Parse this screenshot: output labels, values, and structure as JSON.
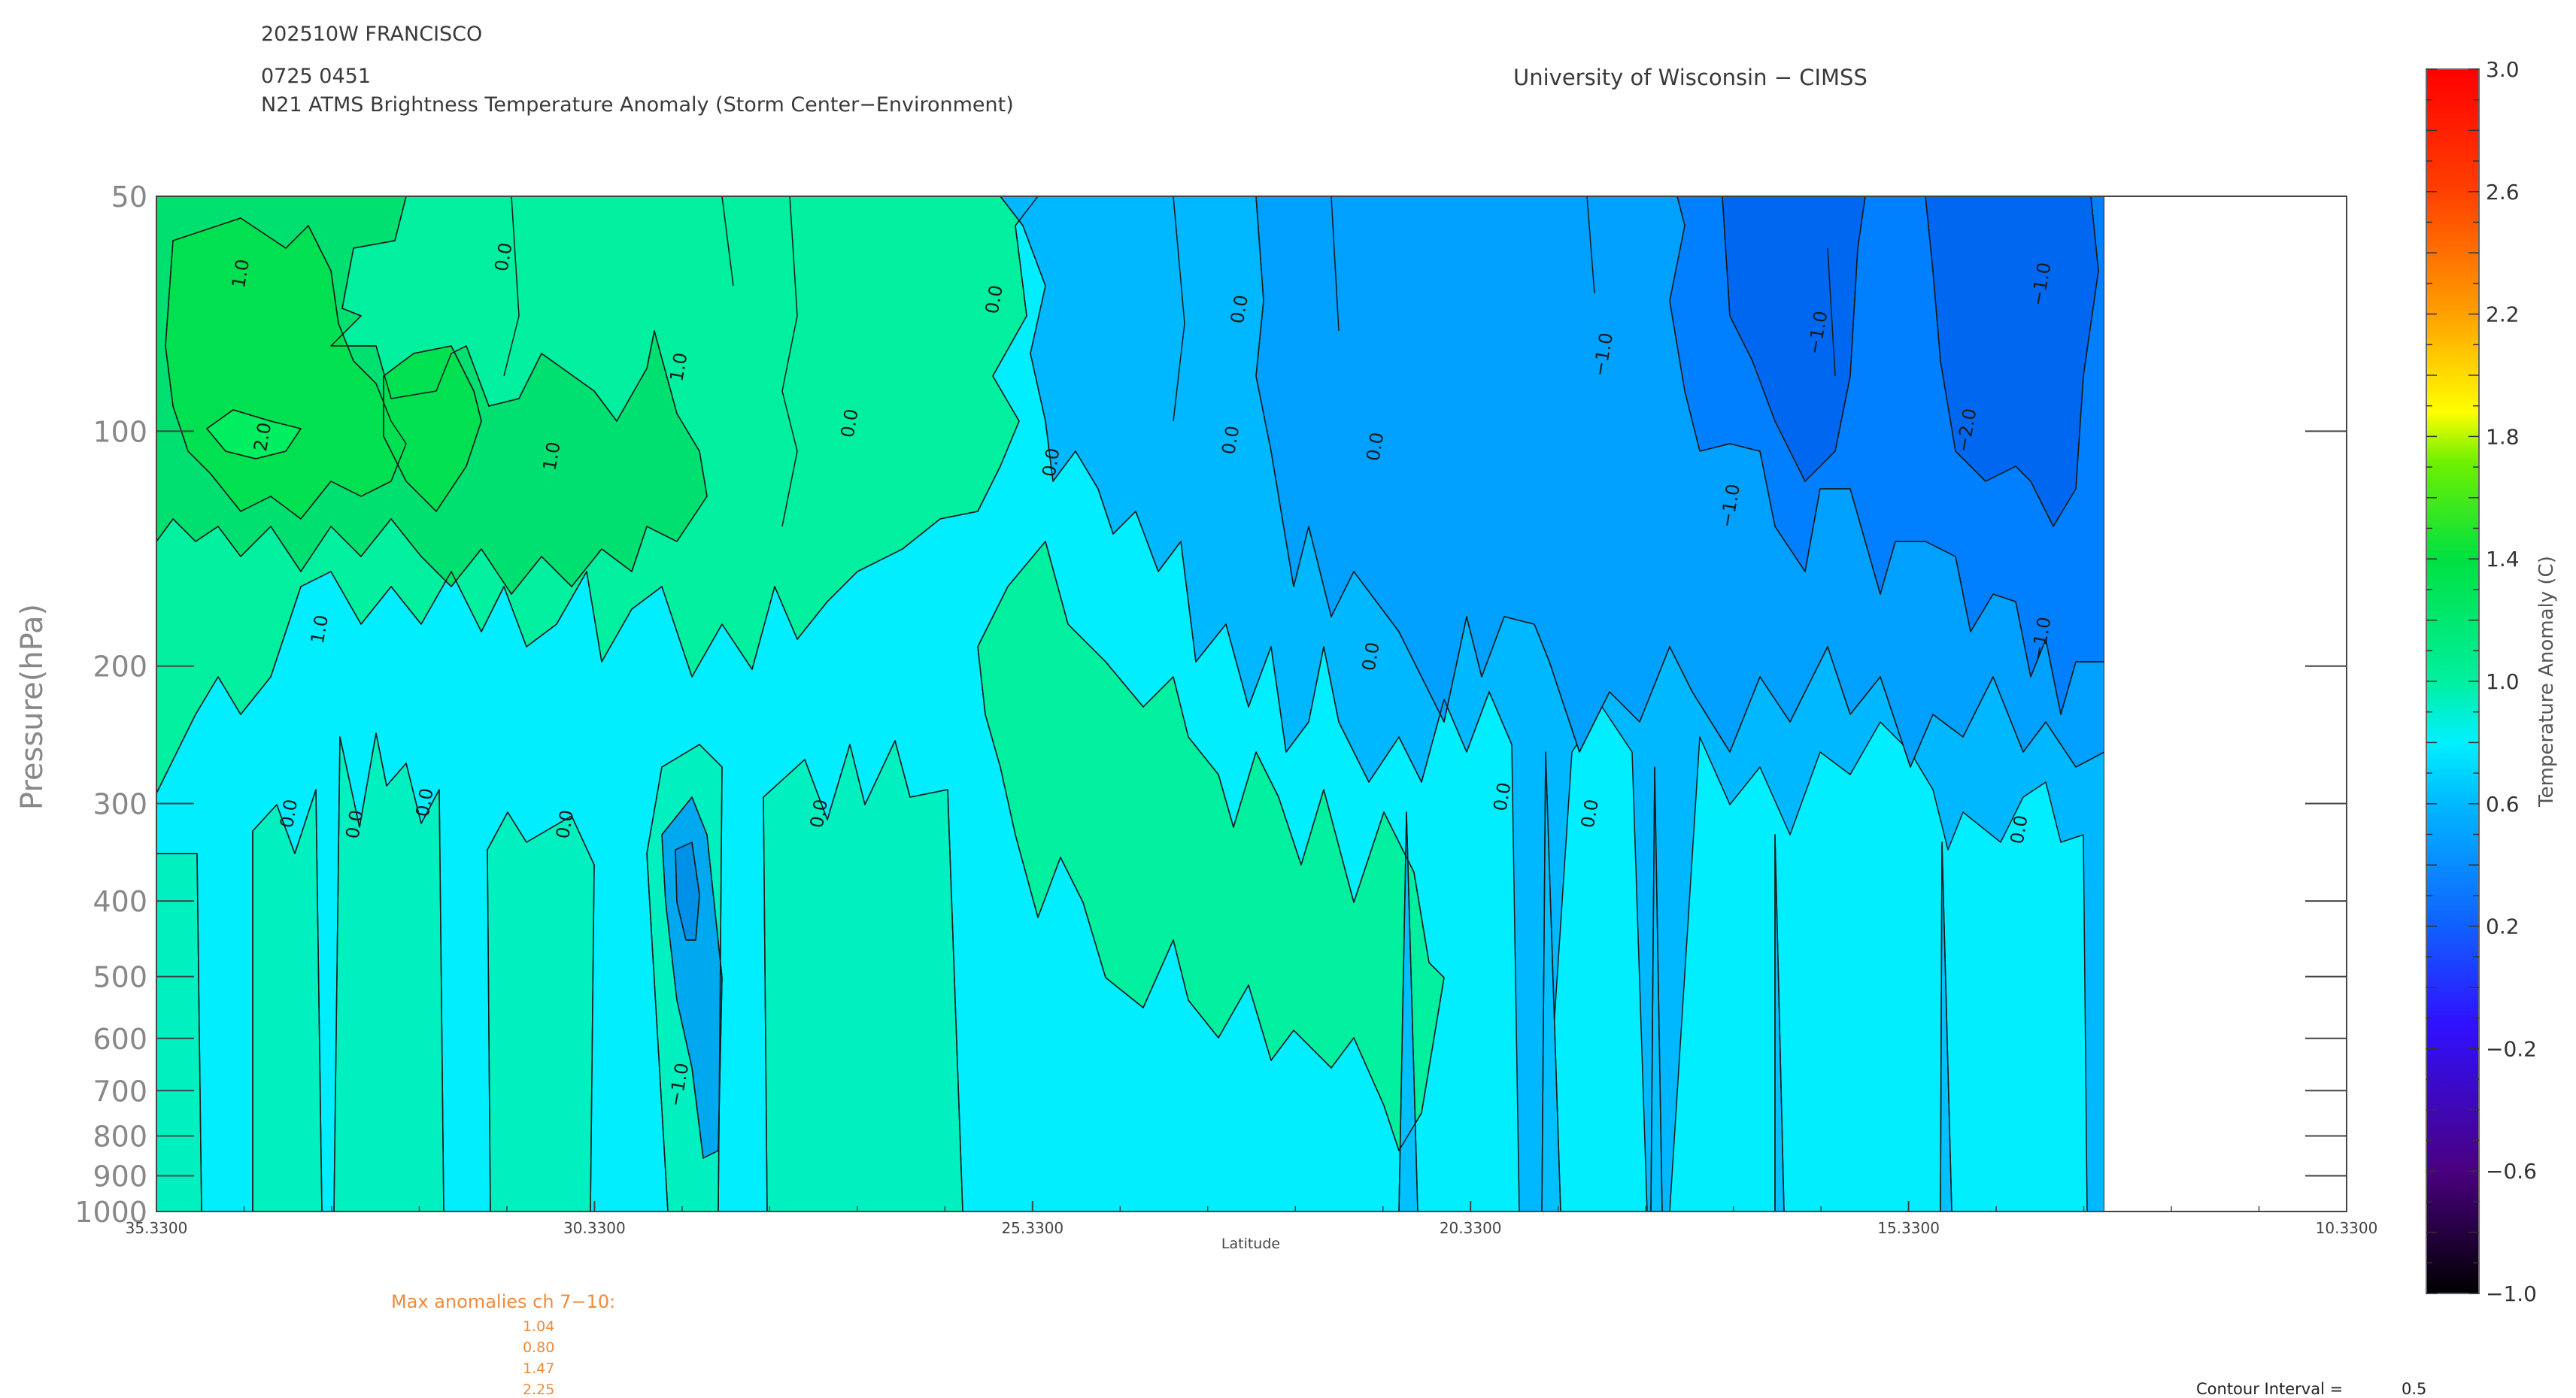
{
  "header": {
    "storm_id": "202510W FRANCISCO",
    "datetime": "0725 0451",
    "product": "N21 ATMS Brightness Temperature Anomaly (Storm Center−Environment)",
    "institution": "University of Wisconsin − CIMSS"
  },
  "chart_data": {
    "type": "contour",
    "title": "N21 ATMS Brightness Temperature Anomaly (Storm Center−Environment)",
    "xlabel": "Latitude",
    "ylabel": "Pressure(hPa)",
    "x_ticks": [
      "35.3300",
      "30.3300",
      "25.3300",
      "20.3300",
      "15.3300",
      "10.3300"
    ],
    "x_tick_values": [
      35.33,
      30.33,
      25.33,
      20.33,
      15.33,
      10.33
    ],
    "xlim": [
      35.33,
      10.33
    ],
    "data_x_extent": [
      35.33,
      12.2
    ],
    "y_scale": "log",
    "ylim": [
      1000,
      50
    ],
    "y_ticks": [
      "50",
      "100",
      "200",
      "300",
      "400",
      "500",
      "600",
      "700",
      "800",
      "900",
      "1000"
    ],
    "y_tick_values": [
      50,
      100,
      200,
      300,
      400,
      500,
      600,
      700,
      800,
      900,
      1000
    ],
    "contour_interval": 0.5,
    "colorbar": {
      "label": "Temperature Anomaly (C)",
      "min": -1.0,
      "max": 3.0,
      "ticks": [
        "3.0",
        "2.6",
        "2.2",
        "1.8",
        "1.4",
        "1.0",
        "0.6",
        "0.2",
        "−0.2",
        "−0.6",
        "−1.0"
      ],
      "tick_values": [
        3.0,
        2.6,
        2.2,
        1.8,
        1.4,
        1.0,
        0.6,
        0.2,
        -0.2,
        -0.6,
        -1.0
      ]
    },
    "contour_labels": [
      {
        "text": "1.0",
        "lat": 34.3,
        "p": 63
      },
      {
        "text": "2.0",
        "lat": 34.05,
        "p": 102
      },
      {
        "text": "1.0",
        "lat": 33.4,
        "p": 180
      },
      {
        "text": "0.0",
        "lat": 31.3,
        "p": 60
      },
      {
        "text": "1.0",
        "lat": 29.3,
        "p": 83
      },
      {
        "text": "1.0",
        "lat": 30.75,
        "p": 108
      },
      {
        "text": "0.0",
        "lat": 27.35,
        "p": 98
      },
      {
        "text": "0.0",
        "lat": 25.7,
        "p": 68
      },
      {
        "text": "0.0",
        "lat": 25.05,
        "p": 110
      },
      {
        "text": "0.0",
        "lat": 22.9,
        "p": 70
      },
      {
        "text": "0.0",
        "lat": 23.0,
        "p": 103
      },
      {
        "text": "0.0",
        "lat": 21.35,
        "p": 105
      },
      {
        "text": "0.0",
        "lat": 21.4,
        "p": 195
      },
      {
        "text": "−1.0",
        "lat": 18.75,
        "p": 80
      },
      {
        "text": "−1.0",
        "lat": 17.3,
        "p": 125
      },
      {
        "text": "−1.0",
        "lat": 16.3,
        "p": 75
      },
      {
        "text": "−2.0",
        "lat": 14.6,
        "p": 100
      },
      {
        "text": "−1.0",
        "lat": 13.75,
        "p": 65
      },
      {
        "text": "−1.0",
        "lat": 13.75,
        "p": 185
      },
      {
        "text": "0.0",
        "lat": 33.75,
        "p": 310
      },
      {
        "text": "0.0",
        "lat": 33.0,
        "p": 320
      },
      {
        "text": "0.0",
        "lat": 32.2,
        "p": 300
      },
      {
        "text": "0.0",
        "lat": 30.6,
        "p": 320
      },
      {
        "text": "0.0",
        "lat": 27.7,
        "p": 310
      },
      {
        "text": "0.0",
        "lat": 19.9,
        "p": 295
      },
      {
        "text": "0.0",
        "lat": 18.9,
        "p": 310
      },
      {
        "text": "0.0",
        "lat": 14.0,
        "p": 325
      },
      {
        "text": "−1.0",
        "lat": 29.3,
        "p": 690
      }
    ],
    "max_anomalies": {
      "label": "Max anomalies ch 7−10:",
      "values": [
        "1.04",
        "0.80",
        "1.47",
        "2.25"
      ]
    },
    "contour_interval_label": "Contour Interval =",
    "contour_interval_value": "0.5"
  }
}
